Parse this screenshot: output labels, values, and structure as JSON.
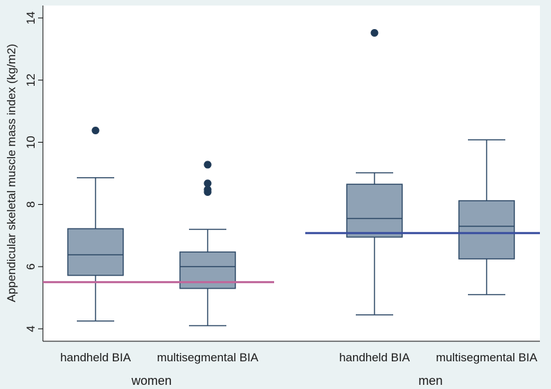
{
  "chart_data": {
    "type": "box",
    "ylabel": "Appendicular skeletal muscle mass index (kg/m2)",
    "ylim": [
      3.6,
      14.4
    ],
    "yticks": [
      4,
      6,
      8,
      10,
      12,
      14
    ],
    "grid": false,
    "groups": [
      {
        "name": "women",
        "reference_line": {
          "y": 5.5,
          "color": "#c0679b"
        },
        "boxes": [
          {
            "label": "handheld BIA",
            "whisker_low": 4.25,
            "q1": 5.72,
            "median": 6.38,
            "q3": 7.22,
            "whisker_high": 8.86,
            "outliers": [
              10.38
            ]
          },
          {
            "label": "multisegmental BIA",
            "whisker_low": 4.1,
            "q1": 5.3,
            "median": 6.0,
            "q3": 6.47,
            "whisker_high": 7.2,
            "outliers": [
              9.28,
              8.68,
              8.48,
              8.4
            ]
          }
        ]
      },
      {
        "name": "men",
        "reference_line": {
          "y": 7.08,
          "color": "#3a4fa0"
        },
        "boxes": [
          {
            "label": "handheld BIA",
            "whisker_low": 4.45,
            "q1": 6.95,
            "median": 7.55,
            "q3": 8.65,
            "whisker_high": 9.02,
            "outliers": [
              13.52
            ]
          },
          {
            "label": "multisegmental BIA",
            "whisker_low": 5.1,
            "q1": 6.25,
            "median": 7.3,
            "q3": 8.12,
            "whisker_high": 10.08,
            "outliers": []
          }
        ]
      }
    ]
  },
  "colors": {
    "box_fill": "#8fa2b5",
    "box_stroke": "#2c4866",
    "outlier": "#1f3a57",
    "plot_background": "#ffffff",
    "page_background": "#eaf2f3"
  }
}
